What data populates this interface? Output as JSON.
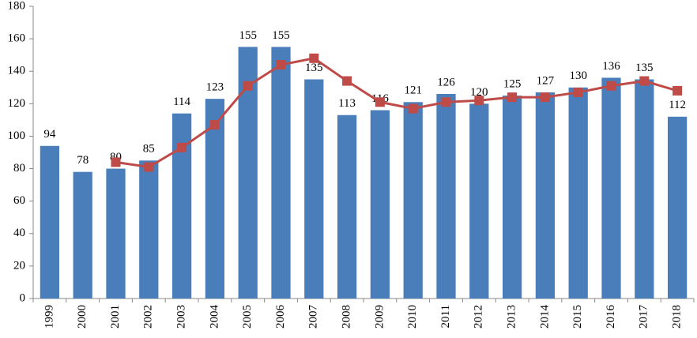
{
  "chart_data": {
    "type": "bar",
    "categories": [
      "1999",
      "2000",
      "2001",
      "2002",
      "2003",
      "2004",
      "2005",
      "2006",
      "2007",
      "2008",
      "2009",
      "2010",
      "2011",
      "2012",
      "2013",
      "2014",
      "2015",
      "2016",
      "2017",
      "2018"
    ],
    "series": [
      {
        "type": "bar",
        "color": "#4a7ebb",
        "values": [
          94,
          78,
          80,
          85,
          114,
          123,
          155,
          155,
          135,
          113,
          116,
          121,
          126,
          120,
          125,
          127,
          130,
          136,
          135,
          112
        ]
      },
      {
        "type": "line",
        "color": "#be4b48",
        "values": [
          null,
          null,
          84,
          81,
          93,
          107,
          131,
          144,
          148,
          134,
          121,
          117,
          121,
          122,
          124,
          124,
          127,
          131,
          134,
          128
        ]
      }
    ],
    "ylim": [
      0,
      180
    ],
    "yticks": [
      0,
      20,
      40,
      60,
      80,
      100,
      120,
      140,
      160,
      180
    ],
    "grid": false
  }
}
